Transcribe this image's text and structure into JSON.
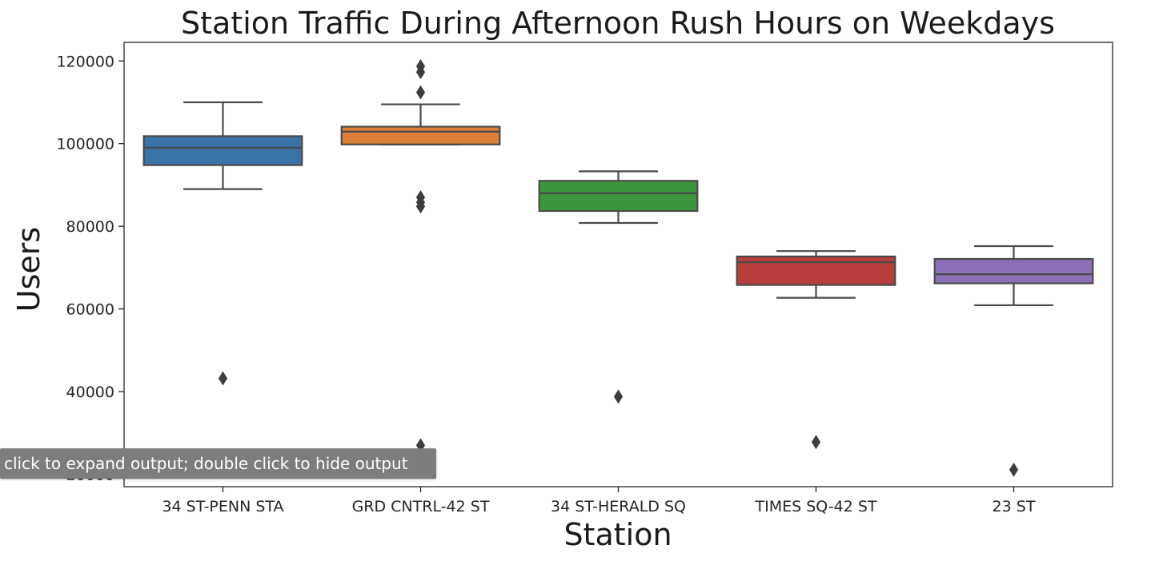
{
  "chart_data": {
    "type": "boxplot",
    "title": "Station Traffic During Afternoon Rush Hours on Weekdays",
    "xlabel": "Station",
    "ylabel": "Users",
    "ylim": [
      17000,
      124500
    ],
    "yticks": [
      20000,
      40000,
      60000,
      80000,
      100000,
      120000
    ],
    "ytick_labels": [
      "20000",
      "40000",
      "60000",
      "80000",
      "100000",
      "120000"
    ],
    "grid": false,
    "categories": [
      "34 ST-PENN STA",
      "GRD CNTRL-42 ST",
      "34 ST-HERALD SQ",
      "TIMES SQ-42 ST",
      "23 ST"
    ],
    "colors": [
      "#3a73a8",
      "#dd8039",
      "#3c963c",
      "#b73e3c",
      "#8d6fb8"
    ],
    "boxes": [
      {
        "whisker_low": 89000,
        "q1": 94800,
        "median": 99000,
        "q3": 101800,
        "whisker_high": 110000,
        "outliers": [
          43200
        ]
      },
      {
        "whisker_low": 99800,
        "q1": 99800,
        "median": 102900,
        "q3": 104100,
        "whisker_high": 109500,
        "outliers": [
          118700,
          117300,
          112400,
          87000,
          85800,
          84800,
          27000
        ]
      },
      {
        "whisker_low": 80800,
        "q1": 83700,
        "median": 88000,
        "q3": 91000,
        "whisker_high": 93300,
        "outliers": [
          38800
        ]
      },
      {
        "whisker_low": 62700,
        "q1": 65800,
        "median": 71300,
        "q3": 72700,
        "whisker_high": 74000,
        "outliers": [
          27800
        ]
      },
      {
        "whisker_low": 60900,
        "q1": 66200,
        "median": 68400,
        "q3": 72100,
        "whisker_high": 75200,
        "outliers": [
          21100
        ]
      }
    ]
  },
  "tooltip": {
    "text": "click to expand output; double click to hide output"
  }
}
